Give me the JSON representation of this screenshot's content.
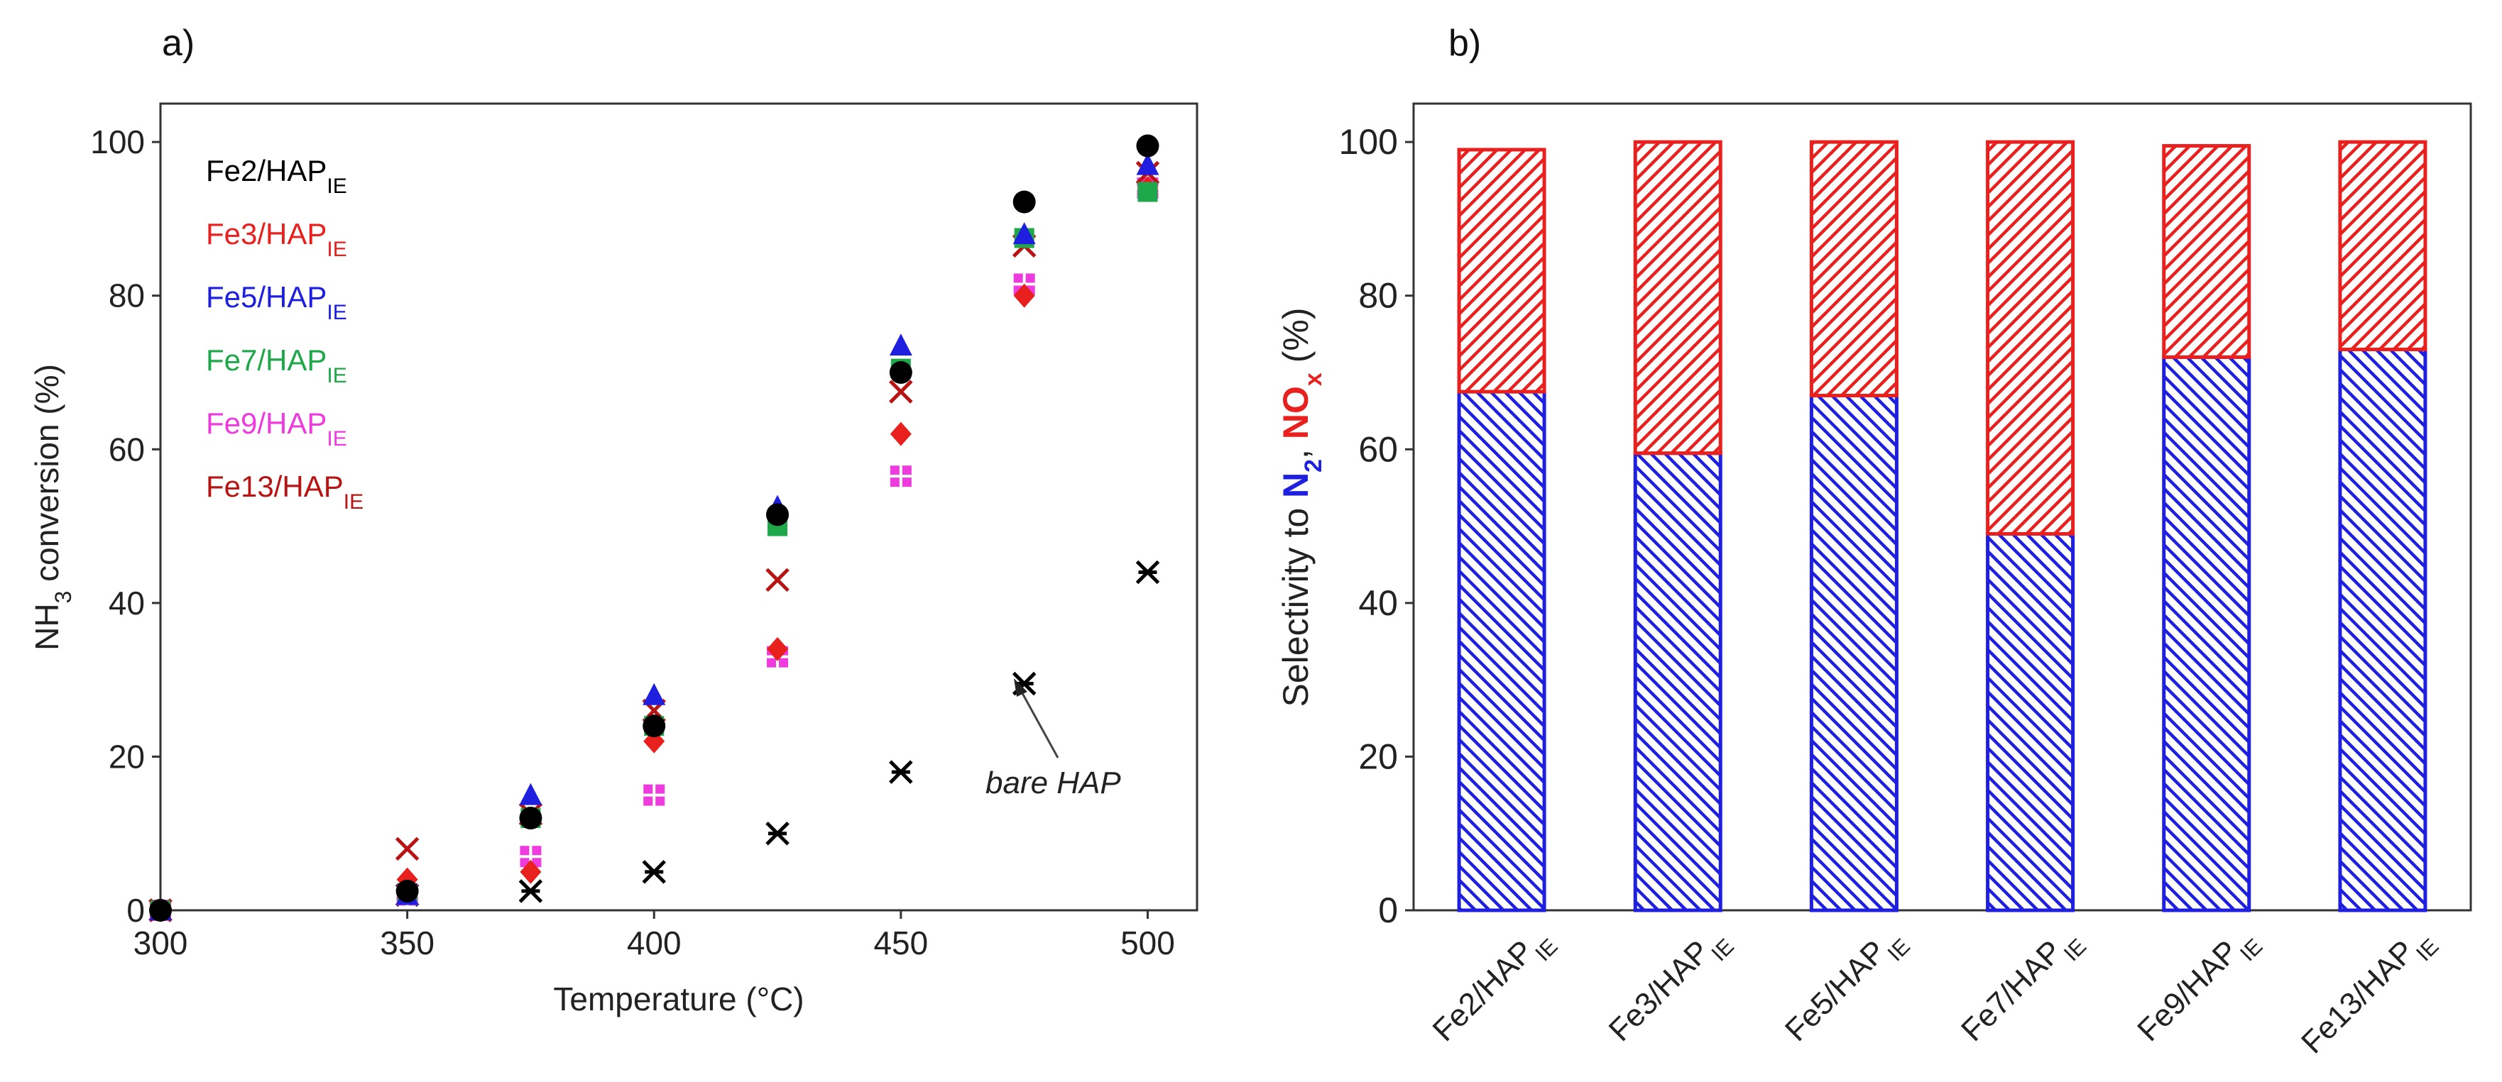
{
  "chart_data": [
    {
      "type": "scatter",
      "panel_label": "a)",
      "xlabel": "Temperature (°C)",
      "ylabel_parts": [
        "NH",
        "3",
        " conversion (%)"
      ],
      "xlim": [
        300,
        510
      ],
      "ylim": [
        0,
        105
      ],
      "xticks": [
        300,
        350,
        400,
        450,
        500
      ],
      "yticks": [
        0,
        20,
        40,
        60,
        80,
        100
      ],
      "series": [
        {
          "name": "Fe2/HAP",
          "sub": "IE",
          "color": "#000000",
          "marker": "circle",
          "x": [
            300,
            350,
            375,
            400,
            425,
            450,
            475,
            500
          ],
          "y": [
            0,
            2.5,
            12,
            24,
            51.5,
            70,
            92.2,
            99.5
          ]
        },
        {
          "name": "Fe3/HAP",
          "sub": "IE",
          "color": "#e8201e",
          "marker": "diamond",
          "x": [
            300,
            350,
            375,
            400,
            425,
            450,
            475,
            500
          ],
          "y": [
            0,
            4,
            5,
            22,
            34,
            62,
            80,
            94
          ]
        },
        {
          "name": "Fe5/HAP",
          "sub": "IE",
          "color": "#1f1fe0",
          "marker": "triangle",
          "x": [
            300,
            350,
            375,
            400,
            425,
            450,
            475,
            500
          ],
          "y": [
            0,
            2,
            15,
            28,
            52.5,
            73.5,
            88,
            97
          ]
        },
        {
          "name": "Fe7/HAP",
          "sub": "IE",
          "color": "#1ea84a",
          "marker": "square",
          "x": [
            300,
            350,
            375,
            400,
            425,
            450,
            475,
            500
          ],
          "y": [
            0,
            2,
            12,
            24,
            50,
            70.5,
            87.5,
            93.5
          ]
        },
        {
          "name": "Fe9/HAP",
          "sub": "IE",
          "color": "#ee3bdd",
          "marker": "squarecross",
          "x": [
            300,
            350,
            375,
            400,
            425,
            450,
            475,
            500
          ],
          "y": [
            0,
            2,
            7,
            15,
            33,
            56.5,
            81.5,
            94
          ]
        },
        {
          "name": "Fe13/HAP",
          "sub": "IE",
          "color": "#b81414",
          "marker": "x",
          "x": [
            300,
            350,
            375,
            400,
            425,
            450,
            475,
            500
          ],
          "y": [
            0,
            8,
            12.5,
            26,
            43,
            67.5,
            86.5,
            96
          ]
        },
        {
          "name": "bare HAP",
          "sub": "",
          "color": "#000000",
          "marker": "asterisk",
          "in_legend": false,
          "x": [
            300,
            350,
            375,
            400,
            425,
            450,
            475,
            500
          ],
          "y": [
            0,
            2,
            2.5,
            5,
            10,
            18,
            29.5,
            44
          ]
        }
      ],
      "annotations": [
        {
          "text": "bare HAP",
          "arrow_to": [
            475,
            29.5
          ]
        }
      ]
    },
    {
      "type": "bar",
      "stacked": true,
      "panel_label": "b)",
      "categories": [
        "Fe2/HAP",
        "Fe3/HAP",
        "Fe5/HAP",
        "Fe7/HAP",
        "Fe9/HAP",
        "Fe13/HAP"
      ],
      "category_sub": "IE",
      "ylim": [
        0,
        105
      ],
      "yticks": [
        0,
        20,
        40,
        60,
        80,
        100
      ],
      "ylabel_parts": [
        "Selectivity to ",
        "N",
        "2",
        ", ",
        "NO",
        "x",
        " (%)"
      ],
      "series": [
        {
          "name": "N2",
          "color": "#1f1fe0",
          "values": [
            67.5,
            59.5,
            67,
            49,
            72,
            73
          ]
        },
        {
          "name": "NOx",
          "color": "#e8201e",
          "values": [
            31.5,
            40.5,
            33,
            51,
            27.5,
            27
          ]
        }
      ]
    }
  ]
}
